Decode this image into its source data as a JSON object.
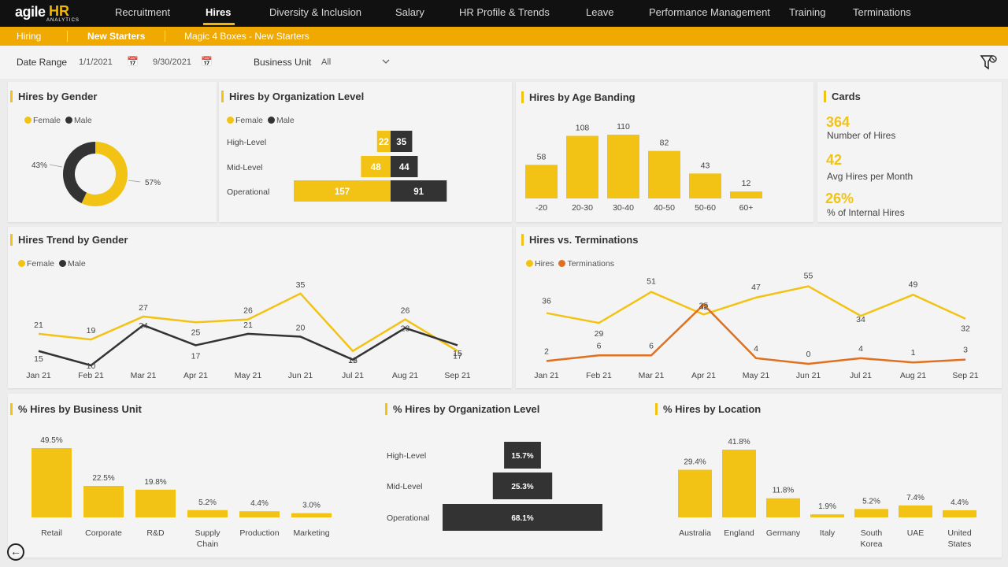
{
  "brand": {
    "name": "agile",
    "hr": "HR",
    "sub": "ANALYTICS"
  },
  "nav": {
    "items": [
      "Recruitment",
      "Hires",
      "Diversity & Inclusion",
      "Salary",
      "HR Profile & Trends",
      "Leave",
      "Performance Management",
      "Training",
      "Terminations"
    ],
    "active": "Hires"
  },
  "subnav": {
    "items": [
      "Hiring",
      "New Starters",
      "Magic 4 Boxes - New Starters"
    ],
    "active": "New Starters"
  },
  "filters": {
    "date_range_label": "Date Range",
    "start_date": "1/1/2021",
    "end_date": "9/30/2021",
    "business_unit_label": "Business Unit",
    "business_unit_value": "All"
  },
  "colors": {
    "female": "#f2c314",
    "male": "#333333",
    "hires": "#f2c314",
    "terminations": "#e07020",
    "accent": "#efa900"
  },
  "icons": {
    "calendar": "calendar-icon",
    "dropdown": "chevron-down-icon",
    "filter": "filter-icon",
    "back": "back-arrow-icon"
  },
  "legends": {
    "female": "Female",
    "male": "Male",
    "hires": "Hires",
    "terminations": "Terminations"
  },
  "cards": {
    "title": "Cards",
    "items": [
      {
        "value": "364",
        "label": "Number of Hires"
      },
      {
        "value": "42",
        "label": "Avg Hires per Month"
      },
      {
        "value": "26%",
        "label": "% of Internal Hires"
      }
    ]
  },
  "chart_data": [
    {
      "id": "gender",
      "type": "pie",
      "title": "Hires by Gender",
      "categories": [
        "Female",
        "Male"
      ],
      "values": [
        57,
        43
      ],
      "labels": [
        "57%",
        "43%"
      ]
    },
    {
      "id": "org",
      "type": "bar",
      "title": "Hires by Organization Level",
      "categories": [
        "High-Level",
        "Mid-Level",
        "Operational"
      ],
      "series": [
        {
          "name": "Female",
          "values": [
            22,
            48,
            157
          ]
        },
        {
          "name": "Male",
          "values": [
            35,
            44,
            91
          ]
        }
      ]
    },
    {
      "id": "age",
      "type": "bar",
      "title": "Hires by Age Banding",
      "categories": [
        "-20",
        "20-30",
        "30-40",
        "40-50",
        "50-60",
        "60+"
      ],
      "values": [
        58,
        108,
        110,
        82,
        43,
        12
      ]
    },
    {
      "id": "trend",
      "type": "line",
      "title": "Hires Trend by Gender",
      "categories": [
        "Jan 21",
        "Feb 21",
        "Mar 21",
        "Apr 21",
        "May 21",
        "Jun 21",
        "Jul 21",
        "Aug 21",
        "Sep 21"
      ],
      "series": [
        {
          "name": "Female",
          "values": [
            21,
            19,
            27,
            25,
            26,
            35,
            15,
            26,
            15
          ]
        },
        {
          "name": "Male",
          "values": [
            15,
            10,
            24,
            17,
            21,
            20,
            12,
            23,
            17
          ]
        }
      ]
    },
    {
      "id": "hvt",
      "type": "line",
      "title": "Hires vs. Terminations",
      "categories": [
        "Jan 21",
        "Feb 21",
        "Mar 21",
        "Apr 21",
        "May 21",
        "Jun 21",
        "Jul 21",
        "Aug 21",
        "Sep 21"
      ],
      "series": [
        {
          "name": "Hires",
          "values": [
            36,
            29,
            51,
            35,
            47,
            55,
            34,
            49,
            32
          ]
        },
        {
          "name": "Terminations",
          "values": [
            2,
            6,
            6,
            42,
            4,
            0,
            4,
            1,
            3
          ]
        }
      ]
    },
    {
      "id": "bu",
      "type": "bar",
      "title": "% Hires by Business Unit",
      "categories": [
        "Retail",
        "Corporate",
        "R&D",
        "Supply Chain",
        "Production",
        "Marketing"
      ],
      "values": [
        49.5,
        22.5,
        19.8,
        5.2,
        4.4,
        3.0
      ],
      "labels": [
        "49.5%",
        "22.5%",
        "19.8%",
        "5.2%",
        "4.4%",
        "3.0%"
      ]
    },
    {
      "id": "orgpct",
      "type": "bar",
      "title": "% Hires by Organization Level",
      "categories": [
        "High-Level",
        "Mid-Level",
        "Operational"
      ],
      "values": [
        15.7,
        25.3,
        68.1
      ],
      "labels": [
        "15.7%",
        "25.3%",
        "68.1%"
      ]
    },
    {
      "id": "loc",
      "type": "bar",
      "title": "% Hires by Location",
      "categories": [
        "Australia",
        "England",
        "Germany",
        "Italy",
        "South Korea",
        "UAE",
        "United States"
      ],
      "values": [
        29.4,
        41.8,
        11.8,
        1.9,
        5.2,
        7.4,
        4.4
      ],
      "labels": [
        "29.4%",
        "41.8%",
        "11.8%",
        "1.9%",
        "5.2%",
        "7.4%",
        "4.4%"
      ]
    }
  ]
}
